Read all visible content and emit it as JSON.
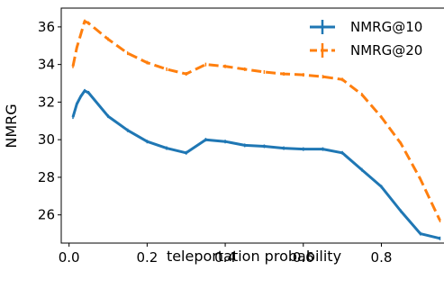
{
  "chart_data": {
    "type": "line",
    "title": "",
    "xlabel": "teleportation probability",
    "ylabel": "NMRG",
    "xlim": [
      -0.02,
      0.965
    ],
    "ylim": [
      24.5,
      37.0
    ],
    "xticks": [
      0.0,
      0.2,
      0.4,
      0.6,
      0.8
    ],
    "xtick_labels": [
      "0.0",
      "0.2",
      "0.4",
      "0.6",
      "0.8"
    ],
    "yticks": [
      26,
      28,
      30,
      32,
      34,
      36
    ],
    "ytick_labels": [
      "26",
      "28",
      "30",
      "32",
      "34",
      "36"
    ],
    "grid": false,
    "legend_position": "top-right",
    "x": [
      0.01,
      0.02,
      0.03,
      0.04,
      0.05,
      0.1,
      0.15,
      0.2,
      0.25,
      0.3,
      0.35,
      0.4,
      0.45,
      0.5,
      0.55,
      0.6,
      0.65,
      0.7,
      0.75,
      0.8,
      0.85,
      0.9,
      0.95
    ],
    "series": [
      {
        "name": "NMRG@10",
        "color": "#1f77b4",
        "linestyle": "solid",
        "values": [
          31.2,
          31.9,
          32.3,
          32.6,
          32.5,
          31.25,
          30.5,
          29.9,
          29.55,
          29.3,
          30.0,
          29.9,
          29.7,
          29.65,
          29.55,
          29.5,
          29.5,
          29.3,
          28.4,
          27.5,
          26.2,
          25.0,
          24.75
        ]
      },
      {
        "name": "NMRG@20",
        "color": "#ff7f0e",
        "linestyle": "dashed",
        "values": [
          33.9,
          34.9,
          35.6,
          36.3,
          36.2,
          35.35,
          34.6,
          34.1,
          33.75,
          33.5,
          34.0,
          33.9,
          33.75,
          33.6,
          33.5,
          33.45,
          33.35,
          33.2,
          32.4,
          31.2,
          29.8,
          27.9,
          25.7
        ]
      }
    ]
  }
}
